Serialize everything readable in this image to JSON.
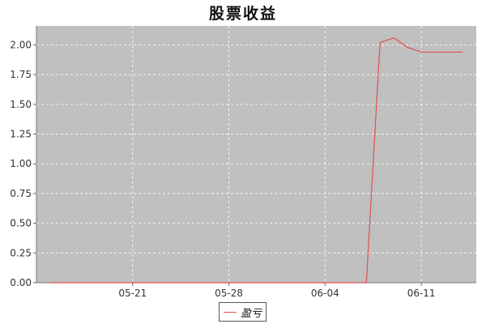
{
  "chart_data": {
    "type": "line",
    "title": "股票收益",
    "xlabel": "",
    "ylabel": "",
    "grid": true,
    "legend_position": "bottom",
    "x_ticks": [
      "05-21",
      "05-28",
      "06-04",
      "06-11"
    ],
    "x": [
      "2019-05-15",
      "2019-05-16",
      "2019-05-17",
      "2019-05-18",
      "2019-05-19",
      "2019-05-20",
      "2019-05-21",
      "2019-05-22",
      "2019-05-23",
      "2019-05-24",
      "2019-05-25",
      "2019-05-26",
      "2019-05-27",
      "2019-05-28",
      "2019-05-29",
      "2019-05-30",
      "2019-05-31",
      "2019-06-01",
      "2019-06-02",
      "2019-06-03",
      "2019-06-04",
      "2019-06-05",
      "2019-06-06",
      "2019-06-07",
      "2019-06-08",
      "2019-06-09",
      "2019-06-10",
      "2019-06-11",
      "2019-06-12",
      "2019-06-13",
      "2019-06-14"
    ],
    "xlim": [
      "2019-05-14",
      "2019-06-15"
    ],
    "y_ticks": [
      "0.00",
      "0.25",
      "0.50",
      "0.75",
      "1.00",
      "1.25",
      "1.50",
      "1.75",
      "2.00"
    ],
    "ylim": [
      0,
      2.16
    ],
    "series": [
      {
        "name": "盈亏",
        "color": "#e05050",
        "values": [
          0,
          0,
          0,
          0,
          0,
          0,
          0,
          0,
          0,
          0,
          0,
          0,
          0,
          0,
          0,
          0,
          0,
          0,
          0,
          0,
          0,
          0,
          0,
          0,
          2.02,
          2.06,
          1.98,
          1.94,
          1.94,
          1.94,
          1.94
        ]
      }
    ]
  },
  "colors": {
    "plot_background": "#c0c0c0",
    "grid": "#ffffff",
    "line": "#e05050"
  }
}
